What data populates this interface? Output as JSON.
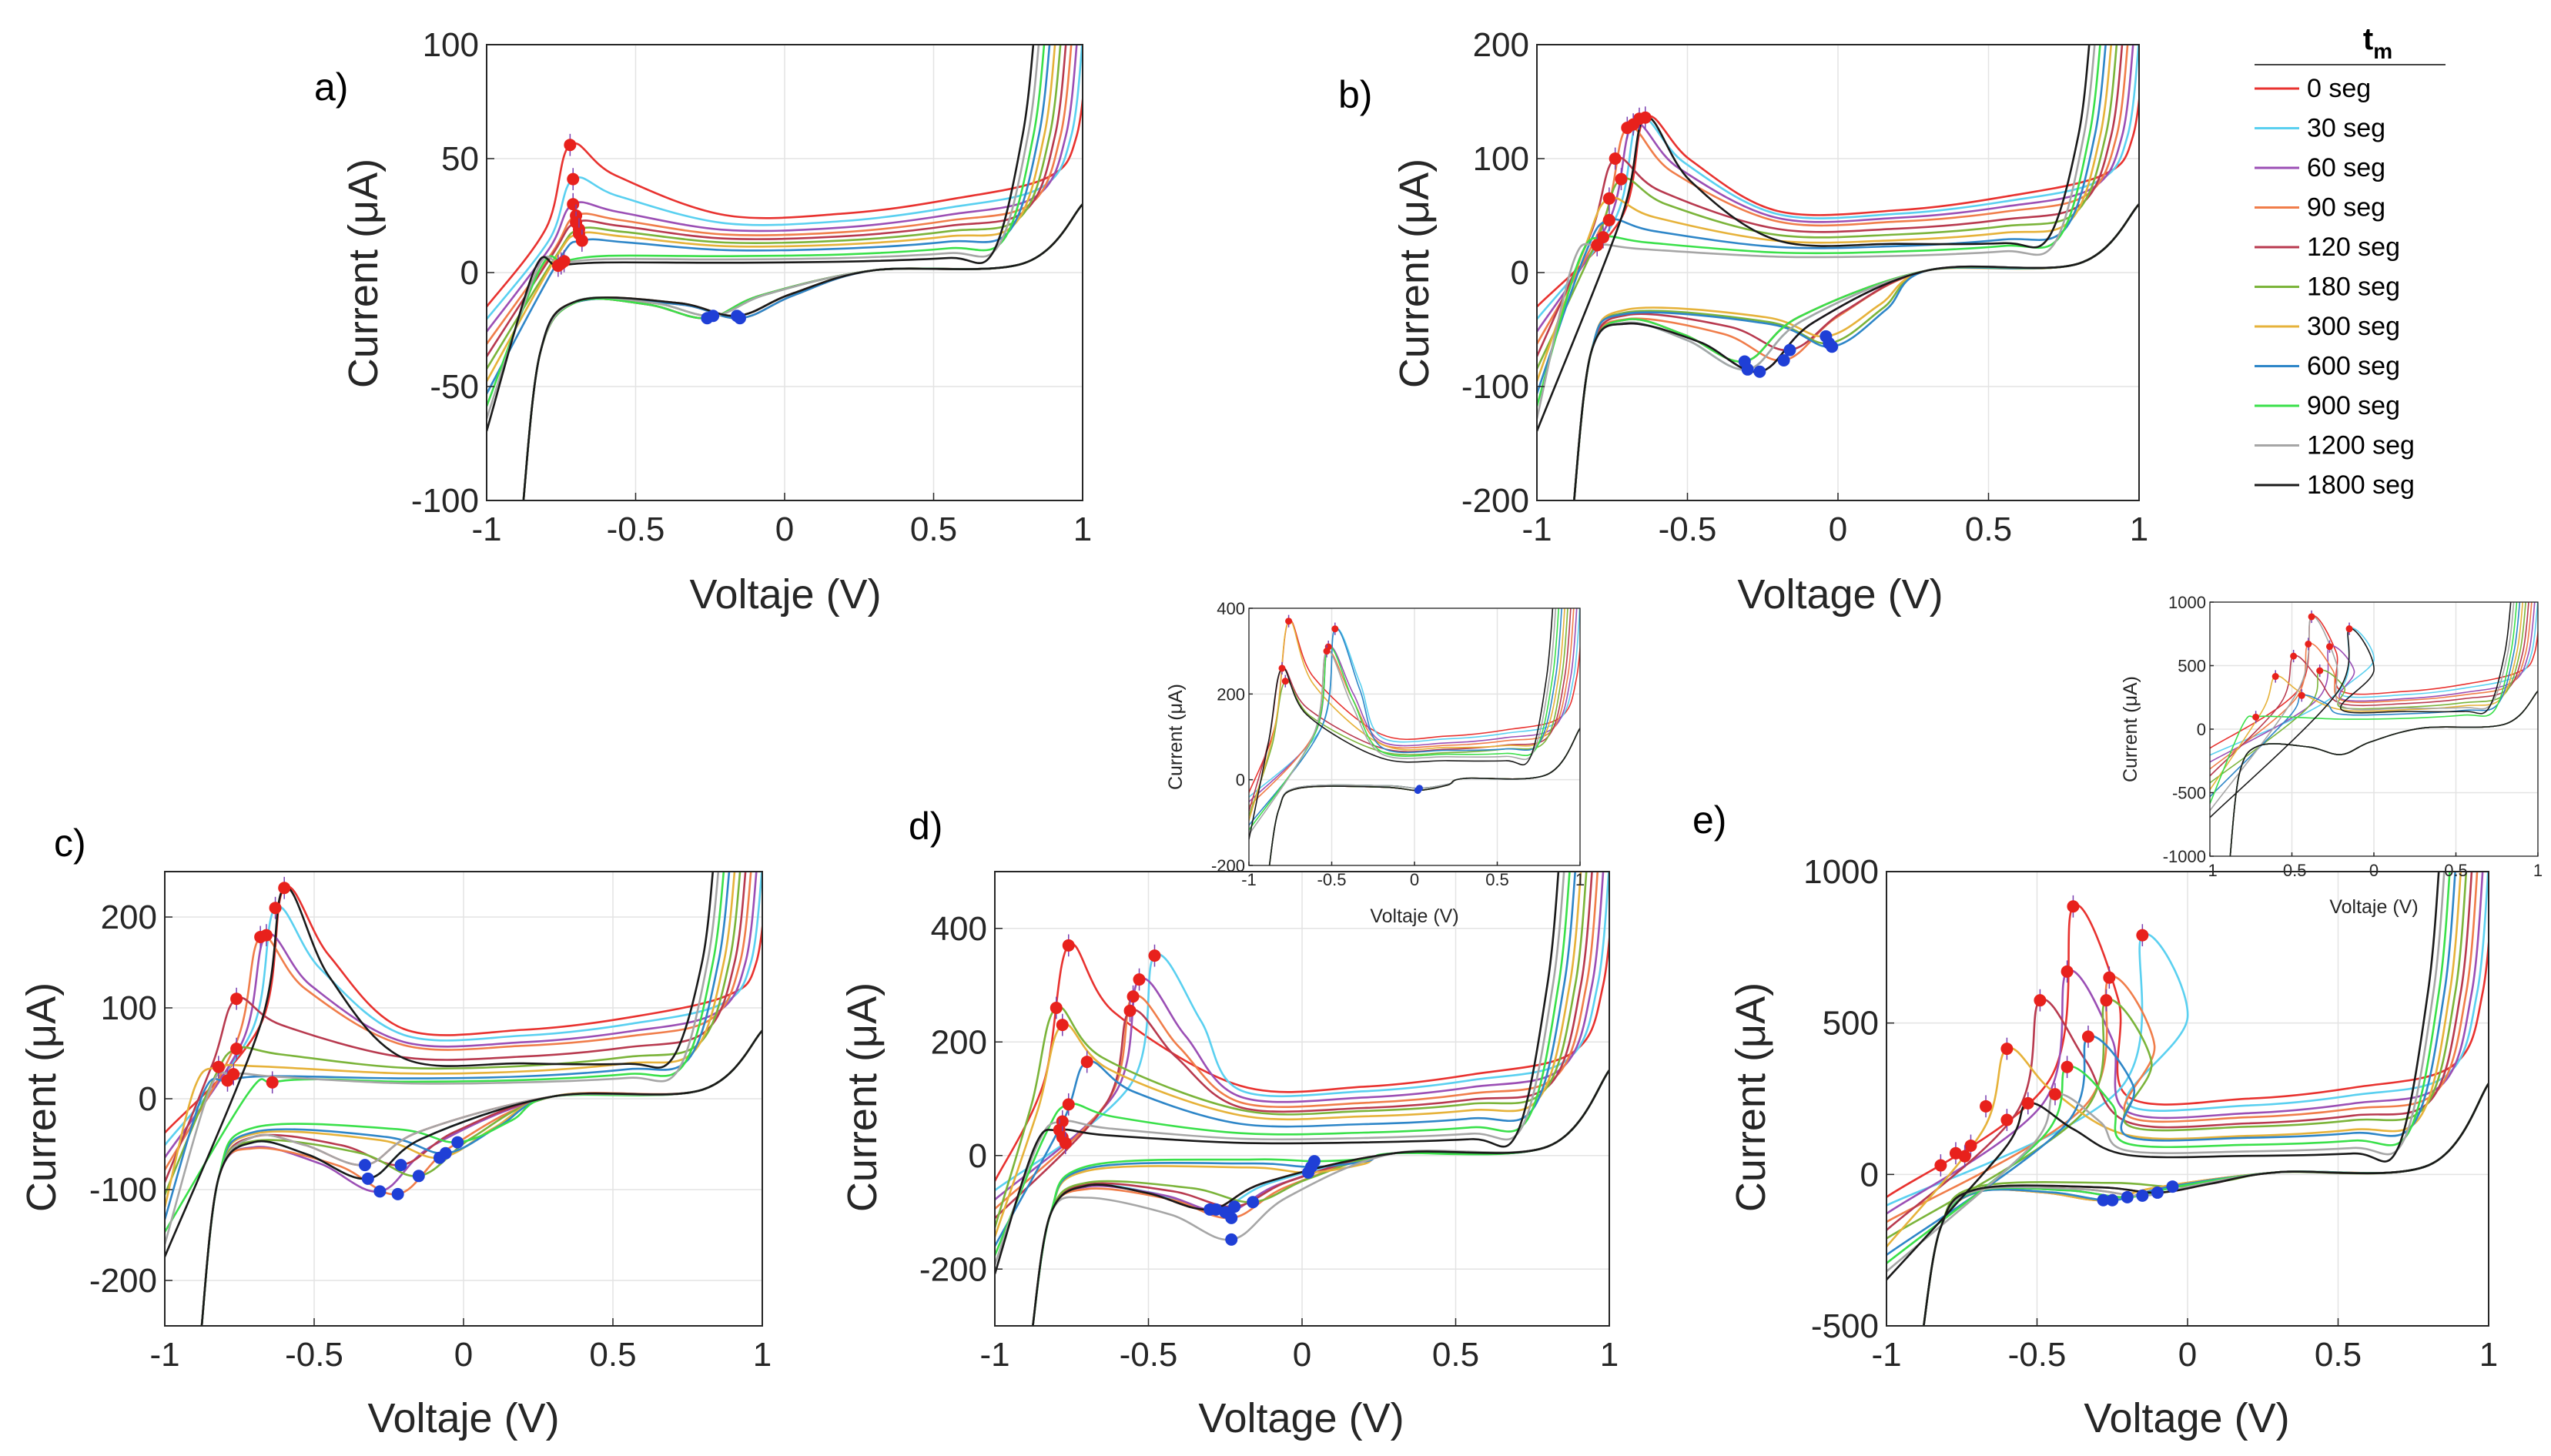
{
  "chart_data": [
    {
      "id": "a",
      "type": "line",
      "panel_label": "a)",
      "xlabel": "Voltaje (V)",
      "ylabel": "Current (μA)",
      "xlim": [
        -1,
        1
      ],
      "ylim": [
        -100,
        100
      ],
      "xticks": [
        -1,
        -0.5,
        0,
        0.5,
        1
      ],
      "xtick_labels": [
        "-1",
        "-0.5",
        "0",
        "0.5",
        "1"
      ],
      "yticks": [
        -100,
        -50,
        0,
        50,
        100
      ],
      "ytick_labels": [
        "-100",
        "-50",
        "0",
        "50",
        "100"
      ],
      "grid": true,
      "anodic_peaks": [
        [
          -0.72,
          56
        ],
        [
          -0.71,
          41
        ],
        [
          -0.71,
          30
        ],
        [
          -0.7,
          25
        ],
        [
          -0.7,
          22
        ],
        [
          -0.69,
          19
        ],
        [
          -0.69,
          17
        ],
        [
          -0.68,
          14
        ],
        [
          -0.74,
          5
        ],
        [
          -0.75,
          4
        ],
        [
          -0.76,
          3
        ]
      ],
      "cathodic_peaks": [
        [
          -0.26,
          -20
        ],
        [
          -0.24,
          -19
        ],
        [
          -0.16,
          -19
        ],
        [
          -0.15,
          -20
        ]
      ]
    },
    {
      "id": "b",
      "type": "line",
      "panel_label": "b)",
      "xlabel": "Voltage (V)",
      "ylabel": "Current (μA)",
      "xlim": [
        -1,
        1
      ],
      "ylim": [
        -200,
        200
      ],
      "xticks": [
        -1,
        -0.5,
        0,
        0.5,
        1
      ],
      "xtick_labels": [
        "-1",
        "-0.5",
        "0",
        "0.5",
        "1"
      ],
      "yticks": [
        -200,
        -100,
        0,
        100,
        200
      ],
      "ytick_labels": [
        "-200",
        "-100",
        "0",
        "100",
        "200"
      ],
      "grid": true,
      "anodic_peaks": [
        [
          -0.64,
          136
        ],
        [
          -0.66,
          135
        ],
        [
          -0.68,
          130
        ],
        [
          -0.7,
          127
        ],
        [
          -0.74,
          100
        ],
        [
          -0.72,
          82
        ],
        [
          -0.76,
          65
        ],
        [
          -0.76,
          46
        ],
        [
          -0.78,
          31
        ],
        [
          -0.8,
          24
        ]
      ],
      "cathodic_peaks": [
        [
          -0.31,
          -78
        ],
        [
          -0.3,
          -85
        ],
        [
          -0.26,
          -87
        ],
        [
          -0.18,
          -77
        ],
        [
          -0.16,
          -68
        ],
        [
          -0.03,
          -62
        ],
        [
          -0.04,
          -56
        ],
        [
          -0.02,
          -65
        ]
      ]
    },
    {
      "id": "c",
      "type": "line",
      "panel_label": "c)",
      "xlabel": "Voltaje (V)",
      "ylabel": "Current (μA)",
      "xlim": [
        -1,
        1
      ],
      "ylim": [
        -250,
        250
      ],
      "xticks": [
        -1,
        -0.5,
        0,
        0.5,
        1
      ],
      "xtick_labels": [
        "-1",
        "-0.5",
        "0",
        "0.5",
        "1"
      ],
      "yticks": [
        -200,
        -100,
        0,
        100,
        200
      ],
      "ytick_labels": [
        "-200",
        "-100",
        "0",
        "100",
        "200"
      ],
      "grid": true,
      "anodic_peaks": [
        [
          -0.6,
          232
        ],
        [
          -0.63,
          210
        ],
        [
          -0.66,
          180
        ],
        [
          -0.68,
          178
        ],
        [
          -0.76,
          110
        ],
        [
          -0.76,
          55
        ],
        [
          -0.82,
          35
        ],
        [
          -0.79,
          20
        ],
        [
          -0.64,
          18
        ],
        [
          -0.77,
          27
        ]
      ],
      "cathodic_peaks": [
        [
          -0.33,
          -73
        ],
        [
          -0.32,
          -88
        ],
        [
          -0.28,
          -102
        ],
        [
          -0.22,
          -105
        ],
        [
          -0.21,
          -73
        ],
        [
          -0.15,
          -85
        ],
        [
          -0.08,
          -65
        ],
        [
          -0.06,
          -60
        ],
        [
          -0.02,
          -48
        ]
      ]
    },
    {
      "id": "d",
      "type": "line",
      "panel_label": "d)",
      "xlabel": "Voltage (V)",
      "ylabel": "Current (μA)",
      "xlim": [
        -1,
        1
      ],
      "ylim": [
        -300,
        500
      ],
      "xticks": [
        -1,
        -0.5,
        0,
        0.5,
        1
      ],
      "xtick_labels": [
        "-1",
        "-0.5",
        "0",
        "0.5",
        "1"
      ],
      "yticks": [
        -200,
        0,
        200,
        400
      ],
      "ytick_labels": [
        "-200",
        "0",
        "200",
        "400"
      ],
      "grid": true,
      "anodic_peaks": [
        [
          -0.76,
          370
        ],
        [
          -0.48,
          352
        ],
        [
          -0.53,
          310
        ],
        [
          -0.55,
          280
        ],
        [
          -0.56,
          255
        ],
        [
          -0.8,
          260
        ],
        [
          -0.78,
          230
        ],
        [
          -0.7,
          165
        ],
        [
          -0.76,
          90
        ],
        [
          -0.78,
          60
        ],
        [
          -0.79,
          45
        ],
        [
          -0.78,
          32
        ],
        [
          -0.77,
          22
        ]
      ],
      "cathodic_peaks": [
        [
          -0.3,
          -95
        ],
        [
          -0.28,
          -95
        ],
        [
          -0.25,
          -100
        ],
        [
          -0.23,
          -110
        ],
        [
          -0.22,
          -90
        ],
        [
          -0.16,
          -82
        ],
        [
          0.02,
          -30
        ],
        [
          0.03,
          -20
        ],
        [
          0.04,
          -10
        ],
        [
          -0.23,
          -148
        ]
      ]
    },
    {
      "id": "e",
      "type": "line",
      "panel_label": "e)",
      "xlabel": "Voltage (V)",
      "ylabel": "Current (μA)",
      "xlim": [
        -1,
        1
      ],
      "ylim": [
        -500,
        1000
      ],
      "xticks": [
        -1,
        -0.5,
        0,
        0.5,
        1
      ],
      "xtick_labels": [
        "-1",
        "-0.5",
        "0",
        "0.5",
        "1"
      ],
      "yticks": [
        -500,
        0,
        500,
        1000
      ],
      "ytick_labels": [
        "-500",
        "0",
        "500",
        "1000"
      ],
      "grid": true,
      "anodic_peaks": [
        [
          -0.38,
          885
        ],
        [
          -0.15,
          790
        ],
        [
          -0.4,
          670
        ],
        [
          -0.26,
          650
        ],
        [
          -0.49,
          575
        ],
        [
          -0.27,
          575
        ],
        [
          -0.6,
          415
        ],
        [
          -0.33,
          455
        ],
        [
          -0.4,
          355
        ],
        [
          -0.44,
          265
        ],
        [
          -0.53,
          235
        ],
        [
          -0.6,
          180
        ],
        [
          -0.67,
          225
        ],
        [
          -0.72,
          95
        ],
        [
          -0.77,
          70
        ],
        [
          -0.74,
          60
        ],
        [
          -0.82,
          30
        ]
      ],
      "cathodic_peaks": [
        [
          -0.28,
          -85
        ],
        [
          -0.25,
          -85
        ],
        [
          -0.2,
          -75
        ],
        [
          -0.15,
          -70
        ],
        [
          -0.1,
          -60
        ],
        [
          -0.05,
          -40
        ]
      ]
    },
    {
      "id": "inset-d",
      "type": "line",
      "xlabel": "Voltaje (V)",
      "ylabel": "Current (μA)",
      "xlim": [
        -1,
        1
      ],
      "ylim": [
        -200,
        400
      ],
      "xticks": [
        -1,
        -0.5,
        0,
        0.5,
        1
      ],
      "xtick_labels": [
        "-1",
        "-0.5",
        "0",
        "0.5",
        "1"
      ],
      "yticks": [
        -200,
        0,
        200,
        400
      ],
      "ytick_labels": [
        "-200",
        "0",
        "200",
        "400"
      ],
      "grid": true,
      "anodic_peaks": [
        [
          -0.76,
          370
        ],
        [
          -0.48,
          352
        ],
        [
          -0.52,
          310
        ],
        [
          -0.53,
          300
        ],
        [
          -0.8,
          260
        ],
        [
          -0.78,
          230
        ]
      ],
      "cathodic_peaks": [
        [
          0.02,
          -25
        ],
        [
          0.03,
          -20
        ]
      ]
    },
    {
      "id": "inset-e",
      "type": "line",
      "xlabel": "Voltaje (V)",
      "ylabel": "Current (μA)",
      "xlim": [
        -1,
        1
      ],
      "ylim": [
        -1000,
        1000
      ],
      "xticks": [
        -1,
        -0.5,
        0,
        0.5,
        1
      ],
      "xtick_labels": [
        "-1",
        "-0.5",
        "0",
        "0.5",
        "1"
      ],
      "yticks": [
        -1000,
        -500,
        0,
        500,
        1000
      ],
      "ytick_labels": [
        "-1000",
        "-500",
        "0",
        "500",
        "1000"
      ],
      "grid": true,
      "anodic_peaks": [
        [
          -0.38,
          885
        ],
        [
          -0.15,
          790
        ],
        [
          -0.27,
          650
        ],
        [
          -0.4,
          670
        ],
        [
          -0.49,
          575
        ],
        [
          -0.33,
          460
        ],
        [
          -0.6,
          415
        ],
        [
          -0.44,
          265
        ],
        [
          -0.72,
          95
        ]
      ],
      "cathodic_peaks": []
    }
  ],
  "legend": {
    "title": "t",
    "title_sub": "m",
    "entries": [
      {
        "label": "0 seg",
        "color": "#e8322f"
      },
      {
        "label": "30 seg",
        "color": "#5ad0f0"
      },
      {
        "label": "60 seg",
        "color": "#9b4fb5"
      },
      {
        "label": "90 seg",
        "color": "#f07d4a"
      },
      {
        "label": "120 seg",
        "color": "#b83a4f"
      },
      {
        "label": "180 seg",
        "color": "#7bb43a"
      },
      {
        "label": "300 seg",
        "color": "#e6b23a"
      },
      {
        "label": "600 seg",
        "color": "#2e86c8"
      },
      {
        "label": "900 seg",
        "color": "#3ae04a"
      },
      {
        "label": "1200 seg",
        "color": "#a6a6a6"
      },
      {
        "label": "1800 seg",
        "color": "#1a1a1a"
      }
    ]
  },
  "style": {
    "anodic_marker_color": "#e8211c",
    "cathodic_marker_color": "#1f3fd6",
    "errorbar_color": "#7a3fb0"
  }
}
